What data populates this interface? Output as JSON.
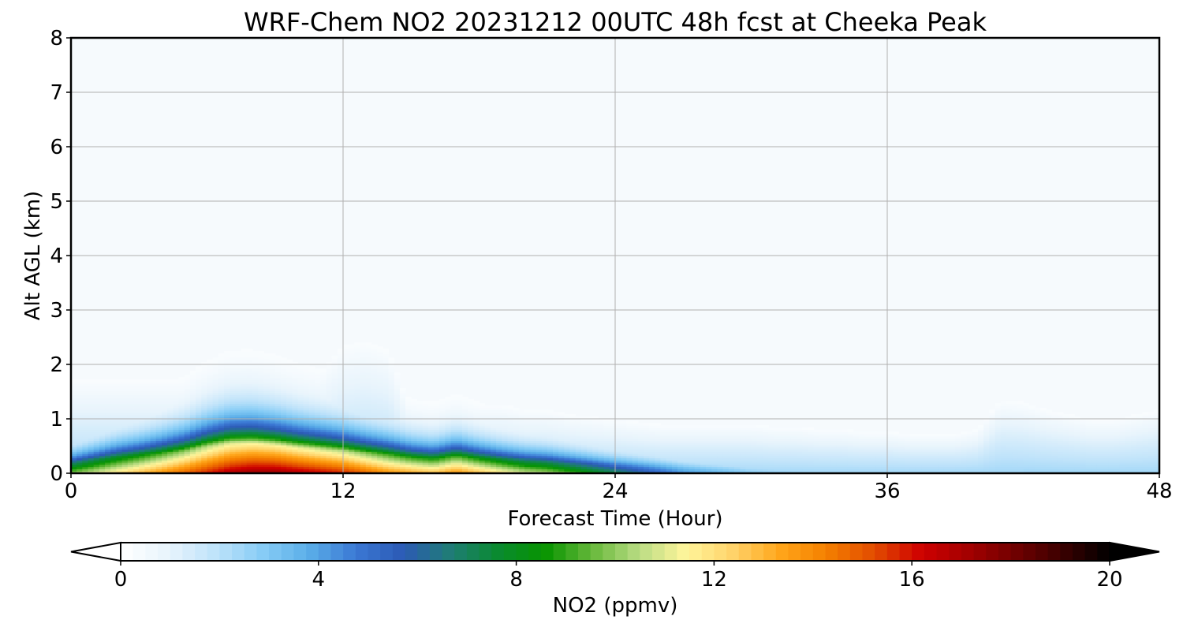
{
  "chart_data": {
    "type": "heatmap",
    "title": "WRF-Chem NO2  20231212 00UTC 48h fcst at Cheeka Peak",
    "xlabel": "Forecast Time (Hour)",
    "ylabel": "Alt AGL (km)",
    "xlim": [
      0,
      48
    ],
    "ylim": [
      0,
      8
    ],
    "xticks": [
      "0",
      "12",
      "24",
      "36",
      "48"
    ],
    "yticks": [
      "0",
      "1",
      "2",
      "3",
      "4",
      "5",
      "6",
      "7",
      "8"
    ],
    "grid": true,
    "colorbar": {
      "label": "NO2  (ppmv)",
      "range": [
        0,
        20
      ],
      "ticks": [
        "0",
        "4",
        "8",
        "12",
        "16",
        "20"
      ],
      "extend": "both",
      "colors": [
        "#ffffff",
        "#e8f4fc",
        "#bfe3fa",
        "#88cdf6",
        "#5aaee8",
        "#3b78d4",
        "#2c5ab5",
        "#1f7d75",
        "#0a8a30",
        "#079400",
        "#66b83a",
        "#b9dc83",
        "#fff59b",
        "#ffd36a",
        "#ffa61a",
        "#f47f00",
        "#e24c00",
        "#cf0000",
        "#a30000",
        "#700000",
        "#3a0000",
        "#000000"
      ]
    },
    "series": [
      {
        "x": [
          0,
          1,
          2,
          3,
          4,
          5,
          6,
          7,
          8,
          9,
          10,
          11,
          12,
          13,
          14,
          15,
          16,
          17,
          18,
          19,
          20,
          21,
          22,
          23,
          24,
          25,
          26,
          27,
          28,
          29,
          30,
          31,
          32,
          33,
          34,
          35,
          36,
          37,
          38,
          39,
          40,
          41,
          42,
          43,
          44,
          45,
          46,
          47,
          48
        ],
        "surface_no2_ppmv": [
          10,
          11,
          12,
          13,
          14,
          15,
          16,
          17,
          17.5,
          17.5,
          17,
          16.5,
          16,
          15,
          14,
          13.5,
          13,
          14,
          13,
          12,
          11,
          10.5,
          9.5,
          8.5,
          7.5,
          6.5,
          5.5,
          4.5,
          4,
          3.5,
          3,
          2.8,
          2.6,
          2.4,
          2.2,
          2,
          1.8,
          1.6,
          1.5,
          1.5,
          1.5,
          2,
          2.5,
          2.5,
          2.5,
          2.5,
          2.5,
          2.5,
          2.5
        ],
        "layer_depth_km": [
          0.2,
          0.25,
          0.3,
          0.33,
          0.37,
          0.42,
          0.5,
          0.55,
          0.55,
          0.52,
          0.48,
          0.45,
          0.42,
          0.38,
          0.35,
          0.3,
          0.28,
          0.32,
          0.28,
          0.25,
          0.23,
          0.22,
          0.2,
          0.18,
          0.16,
          0.15,
          0.14,
          0.13,
          0.12,
          0.12,
          0.11,
          0.11,
          0.1,
          0.1,
          0.1,
          0.1,
          0.1,
          0.1,
          0.1,
          0.12,
          0.15,
          0.3,
          0.35,
          0.3,
          0.28,
          0.26,
          0.24,
          0.22,
          0.2
        ],
        "plume_top_km": [
          1.9,
          1.9,
          1.9,
          1.9,
          1.9,
          1.9,
          1.95,
          2,
          2,
          2,
          2,
          2.1,
          2.6,
          2.7,
          2.5,
          1.3,
          1.2,
          1.5,
          1.4,
          1.4,
          1.3,
          1.3,
          1.2,
          1.15,
          1.1,
          1.05,
          1,
          1,
          1,
          1,
          1,
          0.95,
          0.95,
          0.9,
          0.9,
          0.85,
          0.85,
          0.8,
          0.8,
          0.8,
          0.9,
          1.5,
          1.45,
          1.3,
          1.2,
          1.1,
          1.1,
          1.2,
          1.3
        ]
      }
    ]
  }
}
